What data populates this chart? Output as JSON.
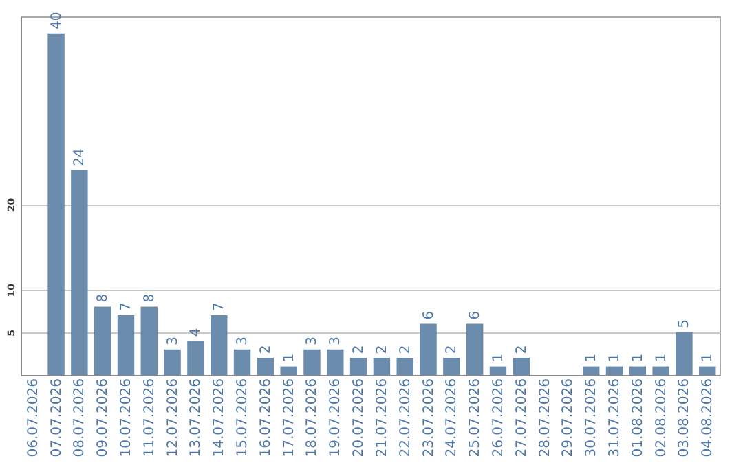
{
  "chart_data": {
    "type": "bar",
    "categories": [
      "06.07.2026",
      "07.07.2026",
      "08.07.2026",
      "09.07.2026",
      "10.07.2026",
      "11.07.2026",
      "12.07.2026",
      "13.07.2026",
      "14.07.2026",
      "15.07.2026",
      "16.07.2026",
      "17.07.2026",
      "18.07.2026",
      "19.07.2026",
      "20.07.2026",
      "21.07.2026",
      "22.07.2026",
      "23.07.2026",
      "24.07.2026",
      "25.07.2026",
      "26.07.2026",
      "27.07.2026",
      "28.07.2026",
      "29.07.2026",
      "30.07.2026",
      "31.07.2026",
      "01.08.2026",
      "02.08.2026",
      "03.08.2026",
      "04.08.2026"
    ],
    "values": [
      null,
      40,
      24,
      8,
      7,
      8,
      3,
      4,
      7,
      3,
      2,
      1,
      3,
      3,
      2,
      2,
      2,
      6,
      2,
      6,
      1,
      2,
      null,
      null,
      1,
      1,
      1,
      1,
      5,
      1
    ],
    "color": "#6b8cad",
    "ylim": [
      0,
      42
    ],
    "yticks": [
      5,
      10,
      20
    ],
    "grid": "y",
    "data_labels": true
  }
}
